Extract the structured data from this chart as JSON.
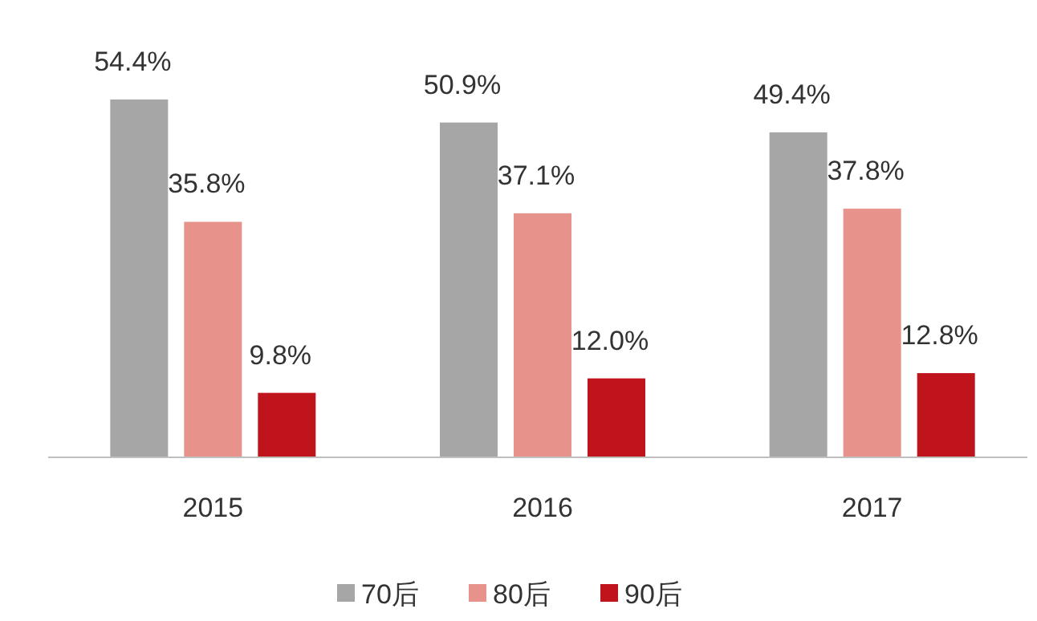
{
  "chart_data": {
    "type": "bar",
    "categories": [
      "2015",
      "2016",
      "2017"
    ],
    "legend": "bottom",
    "series": [
      {
        "name": "70后",
        "color": "#a6a6a6",
        "values": [
          54.4,
          50.9,
          49.4
        ],
        "value_labels": [
          "54.4%",
          "50.9%",
          "49.4%"
        ]
      },
      {
        "name": "80后",
        "color": "#e8928c",
        "values": [
          35.8,
          37.1,
          37.8
        ],
        "value_labels": [
          "35.8%",
          "37.1%",
          "37.8%"
        ]
      },
      {
        "name": "90后",
        "color": "#c0141c",
        "values": [
          9.8,
          12.0,
          12.8
        ],
        "value_labels": [
          "9.8%",
          "12.0%",
          "12.8%"
        ]
      }
    ]
  }
}
